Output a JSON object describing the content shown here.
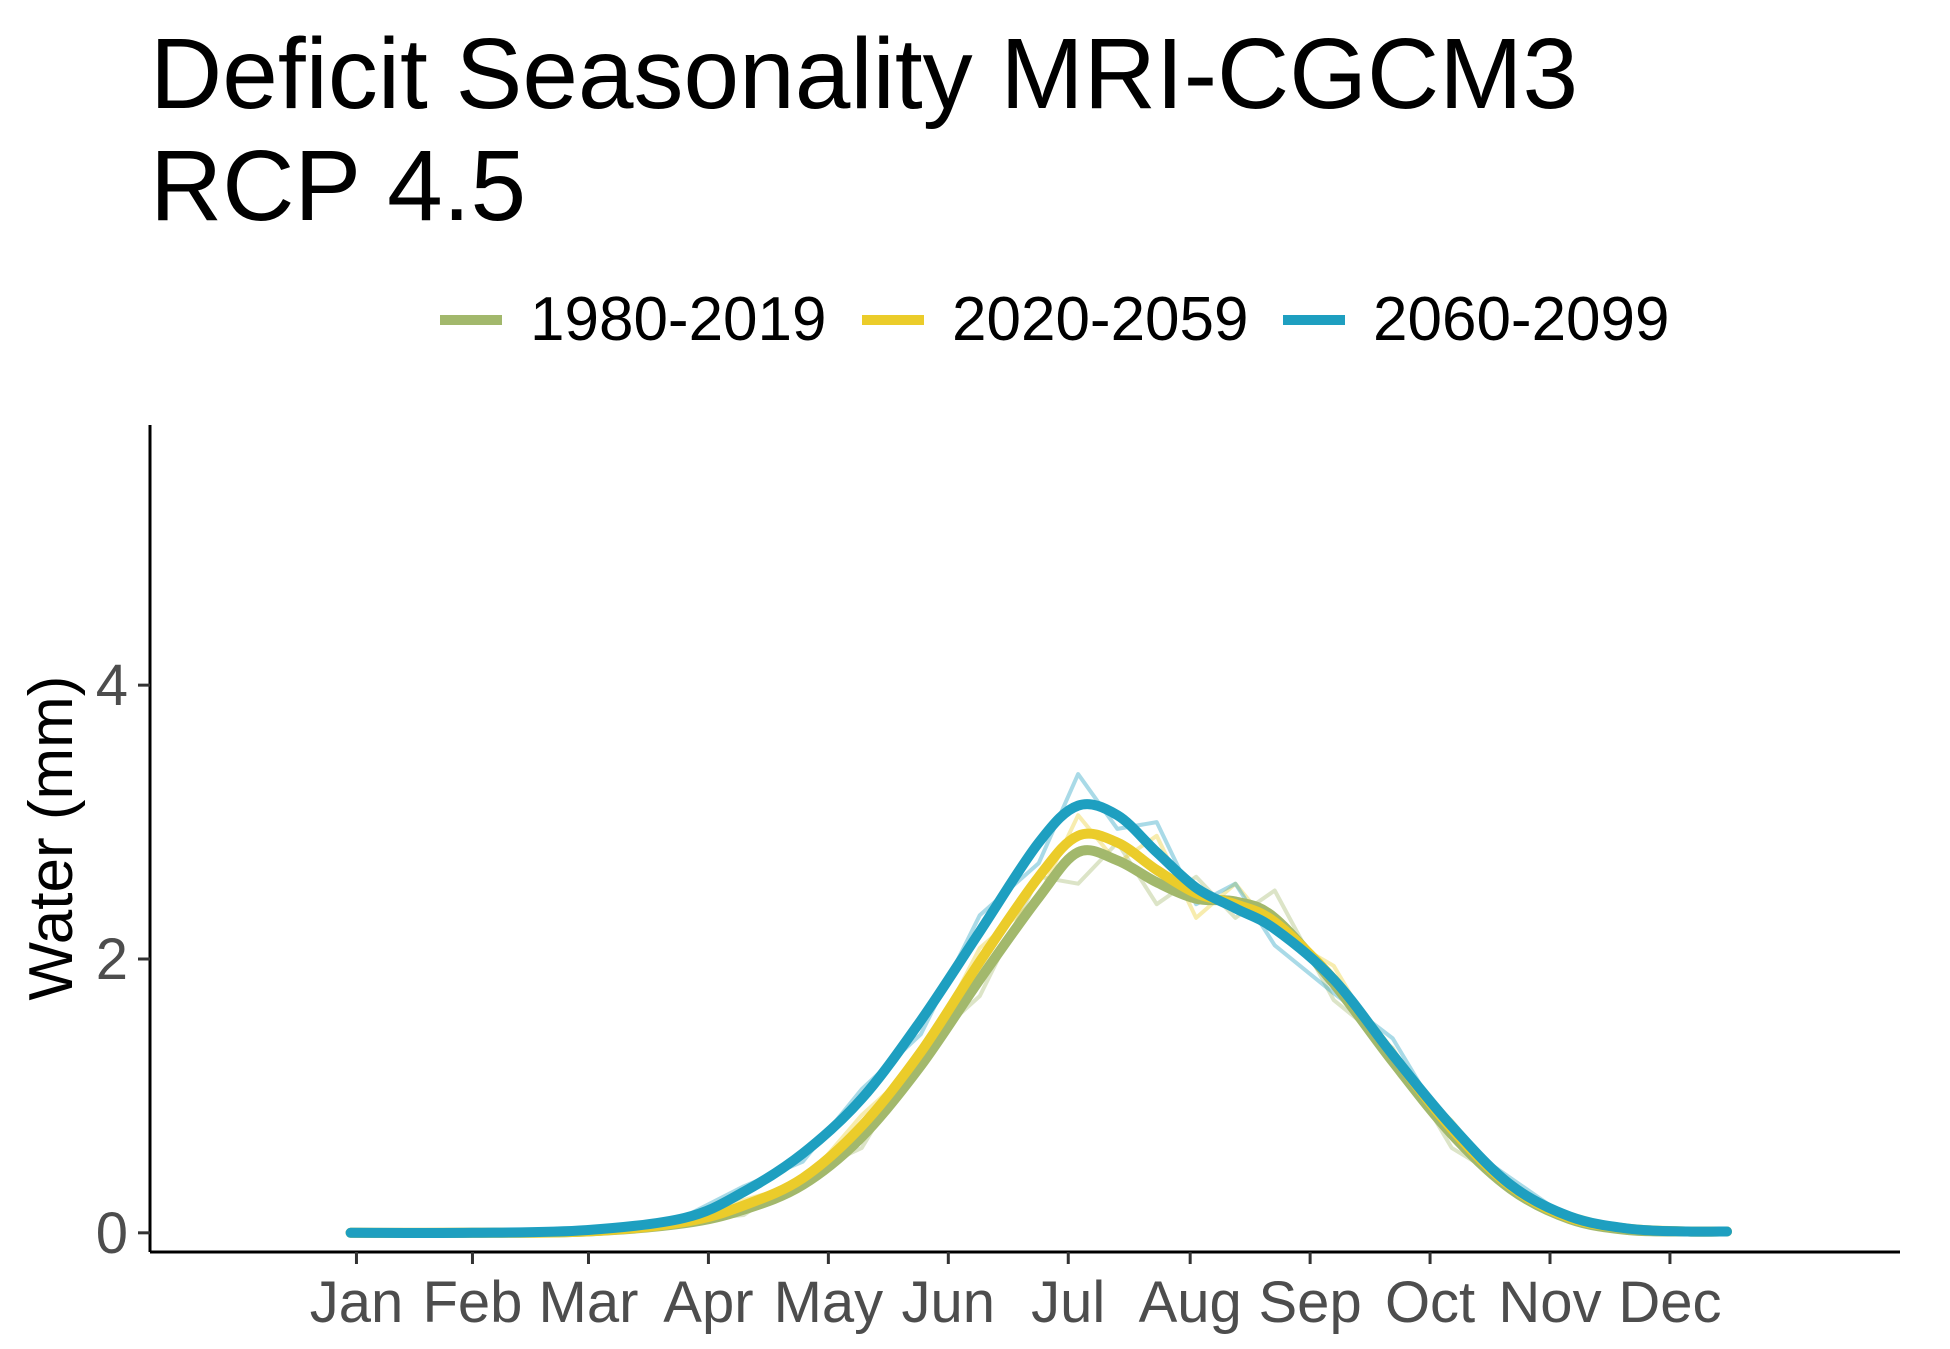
{
  "chart_data": {
    "type": "line",
    "title_lines": [
      "Deficit Seasonality MRI-CGCM3",
      "RCP 4.5"
    ],
    "xlabel": "",
    "ylabel": "Water (mm)",
    "x_ticks": [
      "Jan",
      "Feb",
      "Mar",
      "Apr",
      "May",
      "Jun",
      "Jul",
      "Aug",
      "Sep",
      "Oct",
      "Nov",
      "Dec"
    ],
    "y_ticks": [
      0,
      2,
      4
    ],
    "xlim": [
      -36,
      409
    ],
    "ylim": [
      -0.14,
      5.9
    ],
    "x_unit": "day of year",
    "grid": false,
    "legend_position": "top",
    "series": [
      {
        "name": "1980-2019",
        "color": "#a2b86c",
        "x": [
          15,
          46,
          75,
          100,
          115,
          130,
          145,
          160,
          175,
          190,
          200,
          210,
          220,
          230,
          240,
          250,
          265,
          280,
          295,
          310,
          325,
          340,
          355,
          365
        ],
        "y": [
          0,
          0,
          0.01,
          0.07,
          0.17,
          0.35,
          0.7,
          1.22,
          1.85,
          2.45,
          2.78,
          2.72,
          2.56,
          2.44,
          2.42,
          2.3,
          1.82,
          1.25,
          0.72,
          0.32,
          0.1,
          0.02,
          0.01,
          0.01
        ],
        "raw_y": [
          0,
          0,
          0.01,
          0.09,
          0.13,
          0.42,
          0.62,
          1.34,
          1.73,
          2.6,
          2.55,
          2.85,
          2.4,
          2.6,
          2.3,
          2.5,
          1.7,
          1.35,
          0.62,
          0.36,
          0.08,
          0.02,
          0,
          0
        ]
      },
      {
        "name": "2020-2059",
        "color": "#ebcc2a",
        "x": [
          15,
          46,
          75,
          100,
          115,
          130,
          145,
          160,
          175,
          190,
          200,
          210,
          220,
          230,
          240,
          250,
          265,
          280,
          295,
          310,
          325,
          340,
          355,
          365
        ],
        "y": [
          0,
          0,
          0.01,
          0.08,
          0.2,
          0.4,
          0.78,
          1.32,
          1.98,
          2.6,
          2.9,
          2.85,
          2.65,
          2.48,
          2.4,
          2.27,
          1.85,
          1.3,
          0.76,
          0.34,
          0.11,
          0.03,
          0.01,
          0.01
        ],
        "raw_y": [
          0,
          0,
          0.01,
          0.07,
          0.24,
          0.36,
          0.86,
          1.25,
          2.08,
          2.45,
          3.05,
          2.7,
          2.9,
          2.3,
          2.55,
          2.2,
          1.95,
          1.22,
          0.82,
          0.3,
          0.14,
          0.02,
          0.02,
          0
        ]
      },
      {
        "name": "2060-2099",
        "color": "#1e9fc0",
        "x": [
          15,
          46,
          75,
          100,
          115,
          130,
          145,
          160,
          175,
          190,
          200,
          210,
          220,
          230,
          240,
          250,
          265,
          280,
          295,
          310,
          325,
          340,
          355,
          365
        ],
        "y": [
          0,
          0,
          0.02,
          0.11,
          0.3,
          0.58,
          0.98,
          1.55,
          2.2,
          2.85,
          3.12,
          3.05,
          2.78,
          2.52,
          2.37,
          2.22,
          1.85,
          1.3,
          0.78,
          0.35,
          0.12,
          0.03,
          0.01,
          0.01
        ],
        "raw_y": [
          0,
          0,
          0.02,
          0.12,
          0.34,
          0.52,
          1.05,
          1.45,
          2.32,
          2.7,
          3.35,
          2.95,
          3.0,
          2.4,
          2.55,
          2.1,
          1.75,
          1.42,
          0.7,
          0.4,
          0.1,
          0.04,
          0.01,
          0
        ]
      }
    ]
  }
}
